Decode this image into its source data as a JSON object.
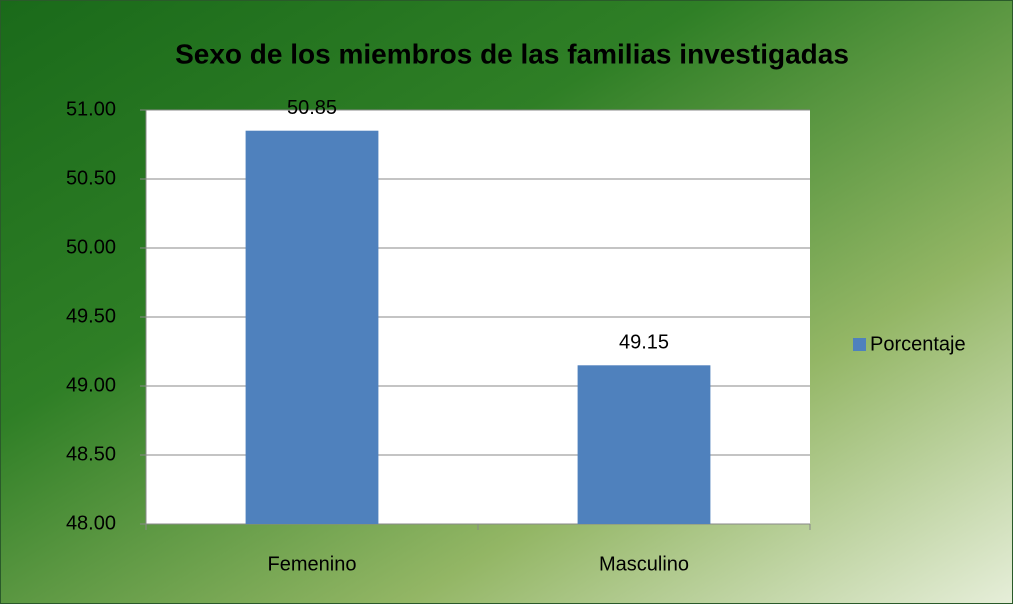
{
  "chart_data": {
    "type": "bar",
    "title": "Sexo de los miembros de las familias investigadas",
    "categories": [
      "Femenino",
      "Masculino"
    ],
    "series": [
      {
        "name": "Porcentaje",
        "color": "#4f81bd",
        "values": [
          50.85,
          49.15
        ]
      }
    ],
    "ylim": [
      48,
      51
    ],
    "yticks": [
      {
        "value": 48,
        "label": "48.00"
      },
      {
        "value": 48.5,
        "label": "48.50"
      },
      {
        "value": 49,
        "label": "49.00"
      },
      {
        "value": 49.5,
        "label": "49.50"
      },
      {
        "value": 50,
        "label": "50.00"
      },
      {
        "value": 50.5,
        "label": "50.50"
      },
      {
        "value": 51,
        "label": "51.00"
      }
    ],
    "grid": true,
    "legend": "right"
  }
}
